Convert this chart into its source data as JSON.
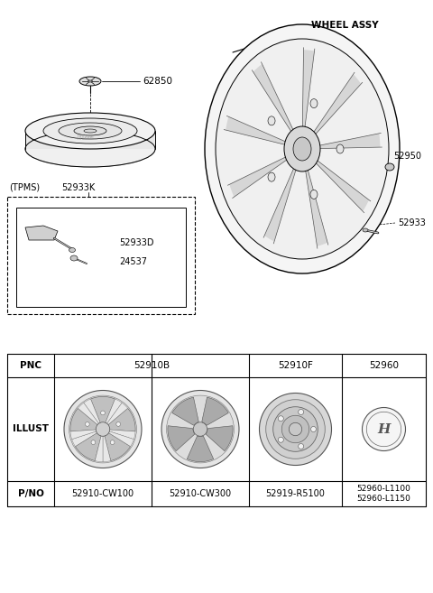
{
  "bg_color": "#ffffff",
  "diagram": {
    "spare_tire_label": "62850",
    "wheel_assy_label": "WHEEL ASSY",
    "label_52950": "52950",
    "label_52933": "52933",
    "tpms_label": "(TPMS)",
    "tpms_kit_label": "52933K",
    "label_52933D": "52933D",
    "label_24537": "24537"
  },
  "table": {
    "col1_pno": "52910-CW100",
    "col2_pno": "52910-CW300",
    "col3_pno": "52919-R5100",
    "col4_pno": "52960-L1100\n52960-L1150"
  }
}
